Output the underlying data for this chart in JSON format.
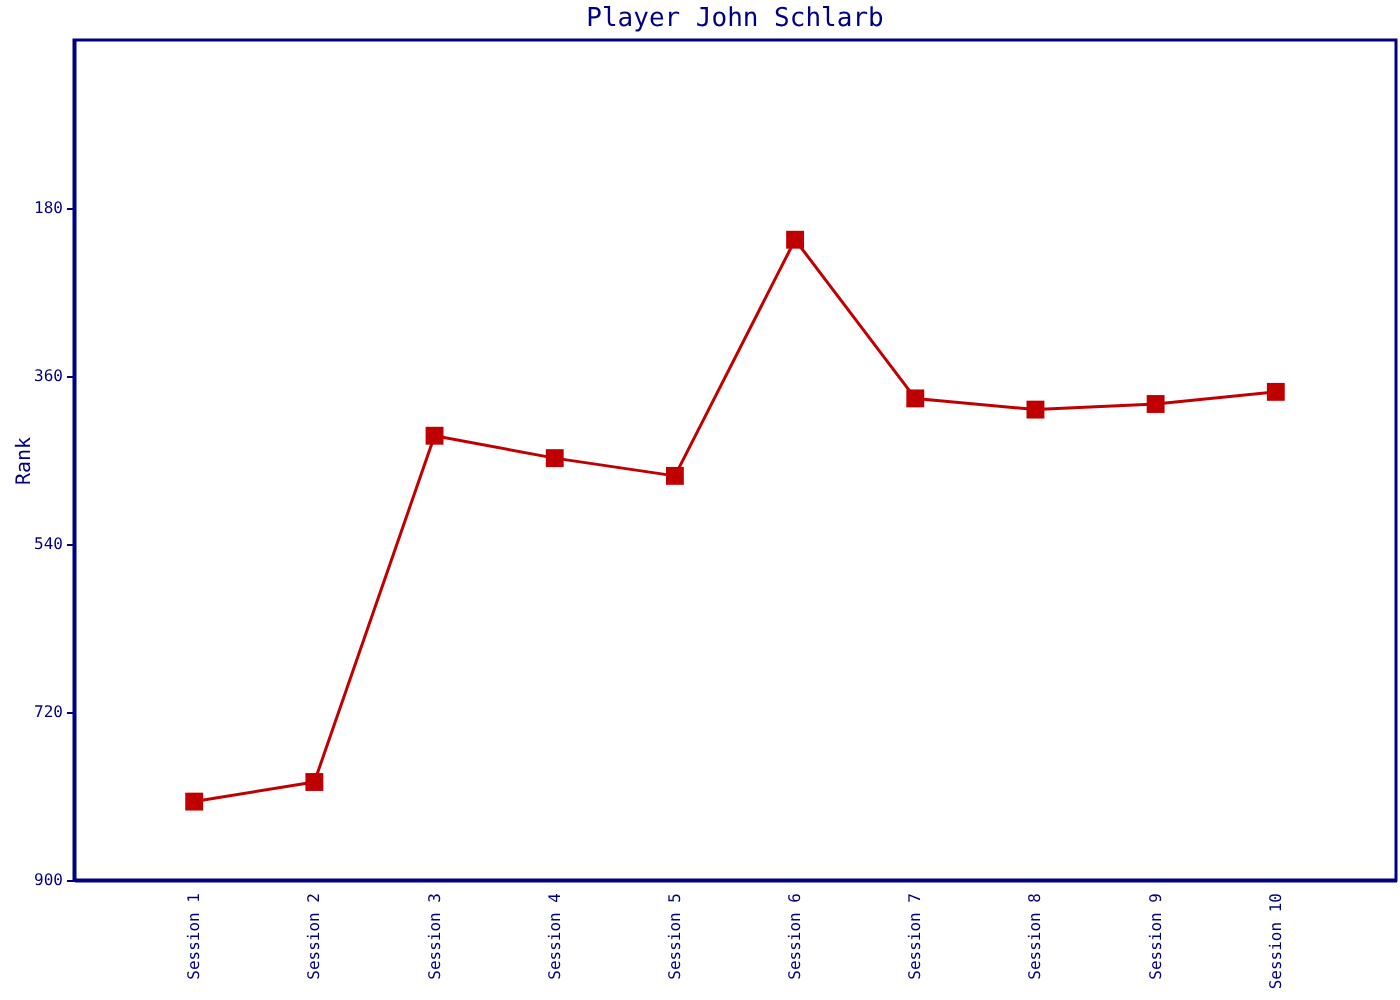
{
  "chart_data": {
    "type": "line",
    "title": "Player John Schlarb",
    "ylabel": "Rank",
    "categories": [
      "Session 1",
      "Session 2",
      "Session 3",
      "Session 4",
      "Session 5",
      "Session 6",
      "Session 7",
      "Session 8",
      "Session 9",
      "Session 10"
    ],
    "series": [
      {
        "color": "#c00000",
        "values": [
          816,
          795,
          424,
          448,
          467,
          214,
          384,
          396,
          390,
          377
        ]
      }
    ],
    "ylim": [
      900,
      0
    ],
    "yticks": [
      180,
      360,
      540,
      720,
      900
    ],
    "grid": false,
    "legend": false,
    "marker": "square",
    "line_style": "solid"
  }
}
